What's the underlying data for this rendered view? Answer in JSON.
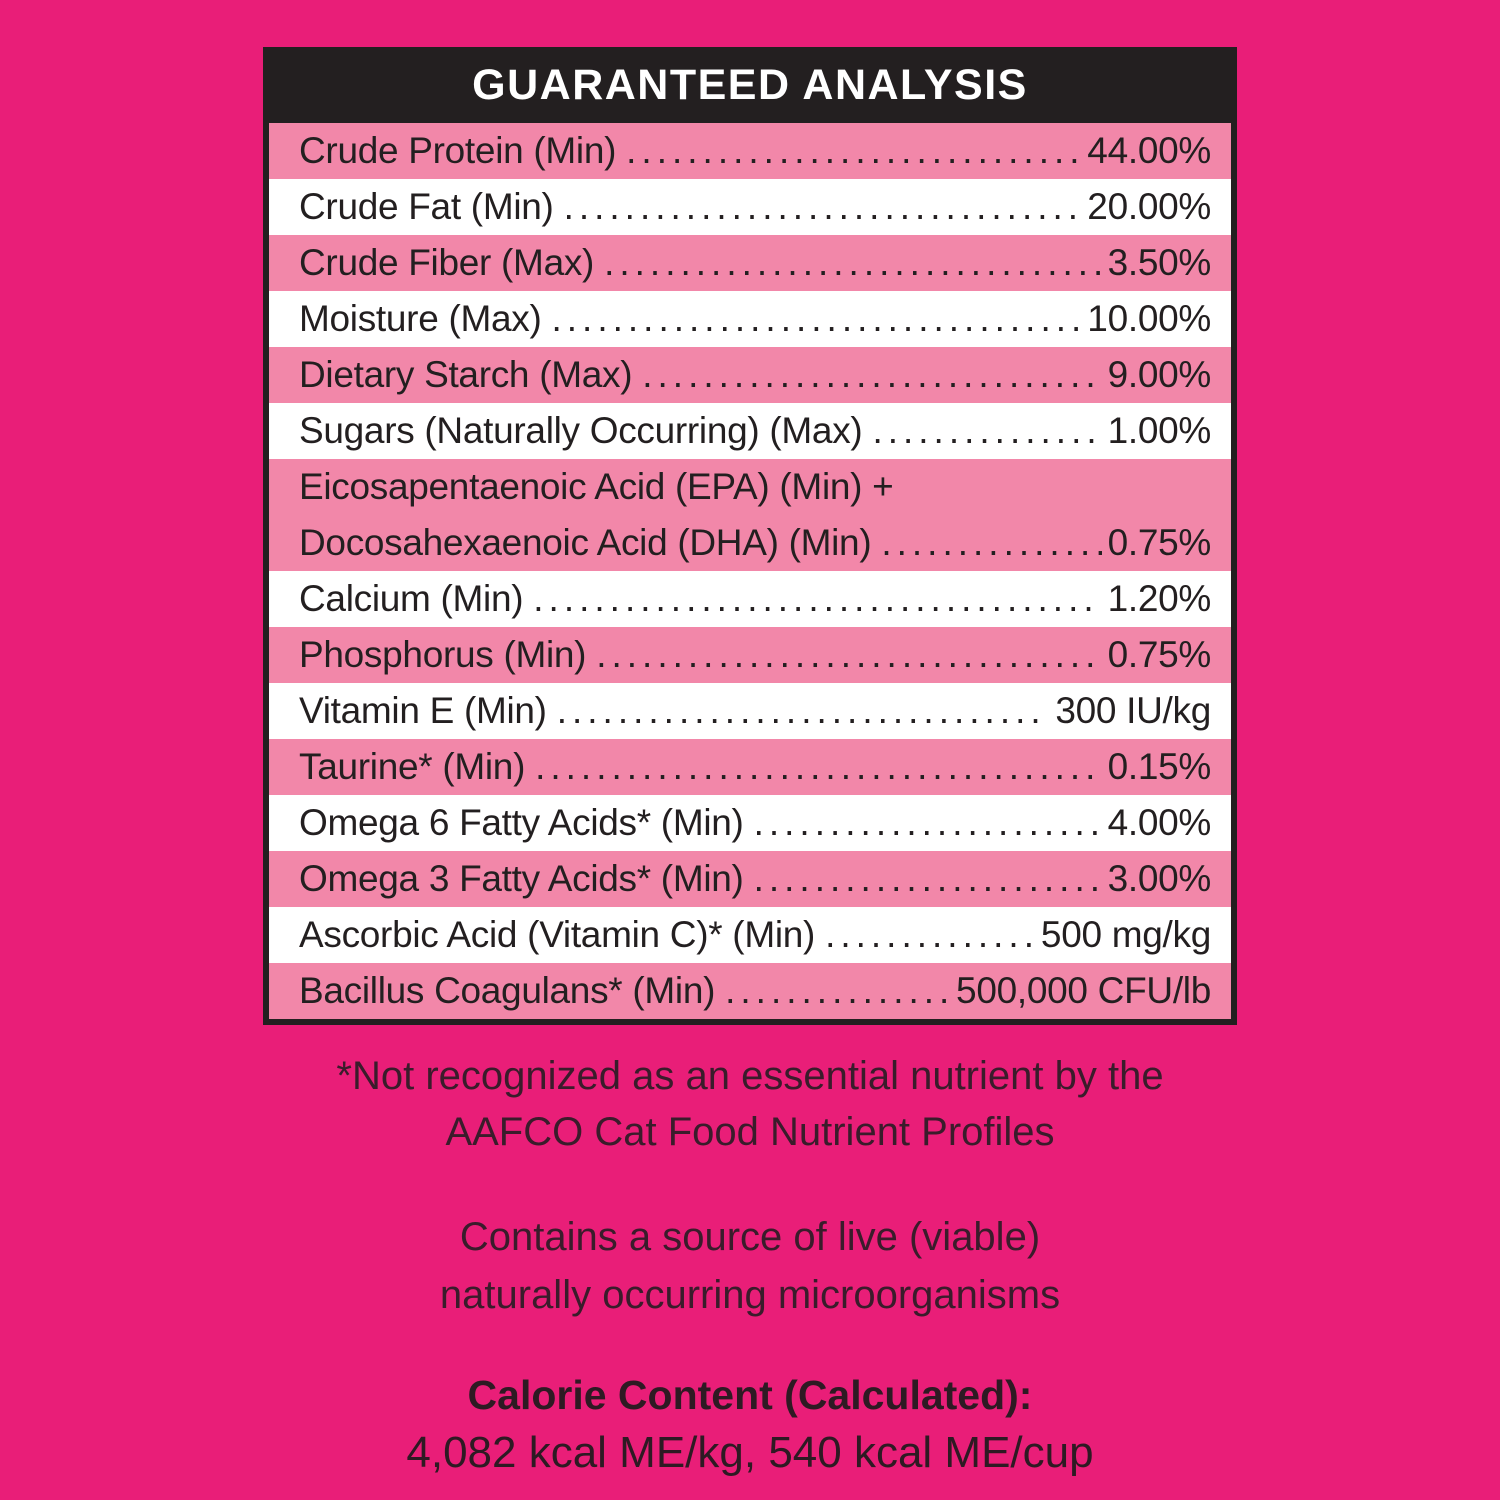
{
  "header": {
    "title": "GUARANTEED ANALYSIS"
  },
  "table": {
    "rows": [
      {
        "label": "Crude Protein (Min)",
        "value": "44.00%",
        "shade": "pink"
      },
      {
        "label": "Crude Fat (Min)",
        "value": "20.00%",
        "shade": "white"
      },
      {
        "label": "Crude Fiber (Max)",
        "value": "3.50%",
        "shade": "pink"
      },
      {
        "label": "Moisture (Max)",
        "value": "10.00%",
        "shade": "white"
      },
      {
        "label": "Dietary Starch (Max)",
        "value": "9.00%",
        "shade": "pink"
      },
      {
        "label": "Sugars (Naturally Occurring) (Max)",
        "value": "1.00%",
        "shade": "white"
      },
      {
        "label": "Eicosapentaenoic Acid (EPA) (Min) +",
        "label2": "Docosahexaenoic Acid (DHA) (Min)",
        "value": "0.75%",
        "shade": "pink"
      },
      {
        "label": "Calcium (Min)",
        "value": "1.20%",
        "shade": "white"
      },
      {
        "label": "Phosphorus (Min)",
        "value": "0.75%",
        "shade": "pink"
      },
      {
        "label": "Vitamin E (Min)",
        "value": "300 IU/kg",
        "shade": "white"
      },
      {
        "label": "Taurine* (Min)",
        "value": "0.15%",
        "shade": "pink"
      },
      {
        "label": "Omega 6 Fatty Acids* (Min)",
        "value": "4.00%",
        "shade": "white"
      },
      {
        "label": "Omega 3 Fatty Acids* (Min)",
        "value": "3.00%",
        "shade": "pink"
      },
      {
        "label": "Ascorbic Acid (Vitamin C)* (Min)",
        "value": "500 mg/kg",
        "shade": "white"
      },
      {
        "label": "Bacillus Coagulans* (Min)",
        "value": "500,000 CFU/lb",
        "shade": "pink"
      }
    ]
  },
  "notes": {
    "footnote_line1": "*Not recognized as an essential nutrient by the",
    "footnote_line2": "AAFCO Cat Food Nutrient Profiles",
    "micro_line1": "Contains a source of live (viable)",
    "micro_line2": "naturally occurring microorganisms",
    "calorie_heading": "Calorie Content (Calculated):",
    "calorie_values": "4,082 kcal ME/kg, 540 kcal ME/cup"
  },
  "colors": {
    "background": "#E91E78",
    "row_pink": "#F287A9",
    "row_white": "#FFFFFF",
    "header_bg": "#231F20",
    "header_text": "#FFFFFF",
    "table_text": "#231F20",
    "note_text": "#3A1C2B"
  }
}
